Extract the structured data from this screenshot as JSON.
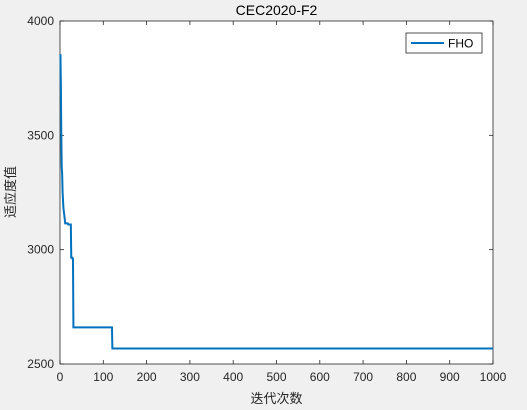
{
  "chart_data": {
    "type": "line",
    "title": "CEC2020-F2",
    "xlabel": "迭代次数",
    "ylabel": "适应度值",
    "xlim": [
      0,
      1000
    ],
    "ylim": [
      2500,
      4000
    ],
    "xticks": [
      0,
      100,
      200,
      300,
      400,
      500,
      600,
      700,
      800,
      900,
      1000
    ],
    "yticks": [
      2500,
      3000,
      3500,
      4000
    ],
    "legend_position": "top-right",
    "grid": false,
    "series": [
      {
        "name": "FHO",
        "color": "#0072BD",
        "x": [
          1,
          2,
          3,
          4,
          5,
          6,
          8,
          10,
          12,
          18,
          19,
          25,
          26,
          28,
          29,
          30,
          31,
          120,
          121,
          1000
        ],
        "y": [
          3855,
          3720,
          3500,
          3360,
          3330,
          3250,
          3180,
          3150,
          3115,
          3115,
          3110,
          3110,
          2965,
          2965,
          2960,
          2960,
          2660,
          2660,
          2568,
          2568
        ]
      }
    ]
  }
}
